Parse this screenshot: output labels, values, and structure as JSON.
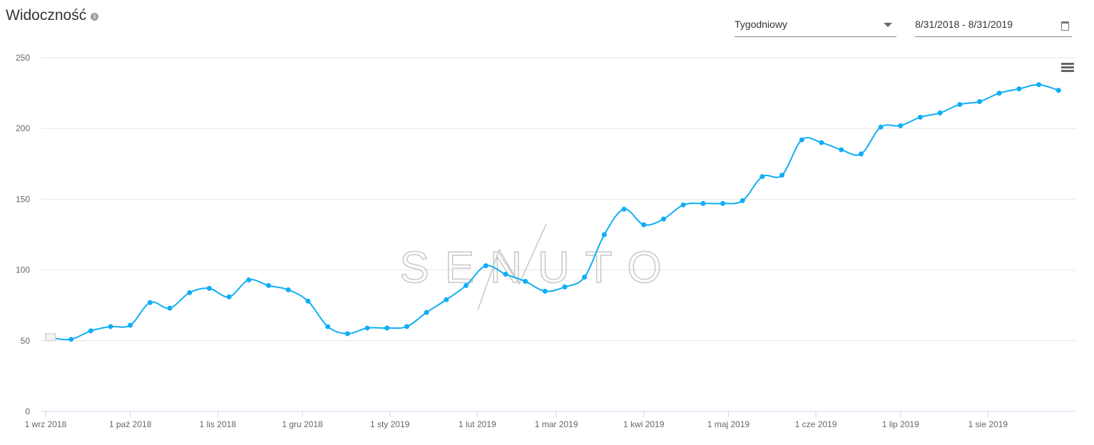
{
  "header": {
    "title": "Widoczność",
    "info_icon": "info-icon"
  },
  "controls": {
    "interval": "Tygodniowy",
    "date_range": "8/31/2018 - 8/31/2019"
  },
  "watermark": "SENUTO",
  "chart_data": {
    "type": "line",
    "title": "Widoczność",
    "color": "#10aef5",
    "ylim": [
      0,
      250
    ],
    "yticks": [
      0,
      50,
      100,
      150,
      200,
      250
    ],
    "xlabels": [
      "1 wrz 2018",
      "1 paź 2018",
      "1 lis 2018",
      "1 gru 2018",
      "1 sty 2019",
      "1 lut 2019",
      "1 mar 2019",
      "1 kwi 2019",
      "1 maj 2019",
      "1 cze 2019",
      "1 lip 2019",
      "1 sie 2019"
    ],
    "xlabel_days": [
      0,
      30,
      61,
      91,
      122,
      153,
      181,
      212,
      242,
      273,
      303,
      334
    ],
    "start_day_offset": 2,
    "step_days": 7,
    "values": [
      52,
      51,
      57,
      60,
      61,
      77,
      73,
      84,
      87,
      81,
      93,
      89,
      86,
      78,
      60,
      55,
      59,
      59,
      60,
      70,
      79,
      89,
      103,
      97,
      92,
      85,
      88,
      95,
      125,
      143,
      132,
      136,
      146,
      147,
      147,
      149,
      166,
      167,
      192,
      190,
      185,
      182,
      201,
      202,
      208,
      211,
      217,
      219,
      225,
      228,
      231,
      227
    ]
  }
}
